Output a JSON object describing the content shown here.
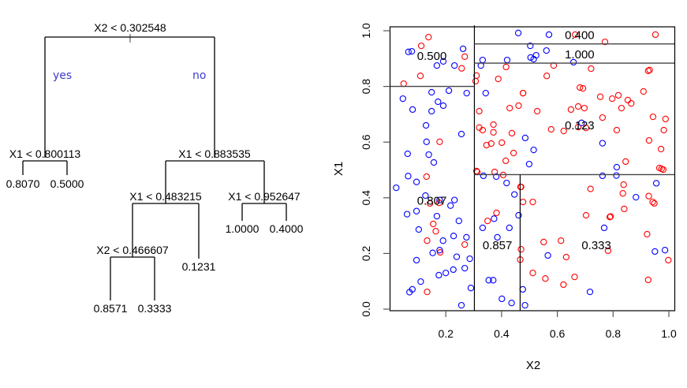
{
  "chart_data": [
    {
      "type": "tree",
      "title": "",
      "root": {
        "split": "X2 < 0.302548",
        "yes_label": "yes",
        "no_label": "no",
        "left": {
          "split": "X1 < 0.800113",
          "left": {
            "leaf": "0.8070"
          },
          "right": {
            "leaf": "0.5000"
          }
        },
        "right": {
          "split": "X1 < 0.883535",
          "left": {
            "split": "X1 < 0.483215",
            "left": {
              "split": "X2 < 0.466607",
              "left": {
                "leaf": "0.8571"
              },
              "right": {
                "leaf": "0.3333"
              }
            },
            "right": {
              "leaf": "0.1231"
            }
          },
          "right": {
            "split": "X1 < 0.952647",
            "left": {
              "leaf": "1.0000"
            },
            "right": {
              "leaf": "0.4000"
            }
          }
        }
      }
    },
    {
      "type": "scatter",
      "title": "",
      "xlabel": "X2",
      "ylabel": "X1",
      "xlim": [
        0,
        1
      ],
      "ylim": [
        0,
        1
      ],
      "xticks": [
        "0.2",
        "0.4",
        "0.6",
        "0.8",
        "1.0"
      ],
      "yticks": [
        "0.0",
        "0.2",
        "0.4",
        "0.6",
        "0.8",
        "1.0"
      ],
      "series_colors": {
        "red": "#ff0000",
        "blue": "#0000ff"
      },
      "partition_lines": [
        {
          "orient": "v",
          "at": 0.302548,
          "from": 0,
          "to": 1
        },
        {
          "orient": "h",
          "at": 0.800113,
          "from": 0,
          "to": 0.302548
        },
        {
          "orient": "h",
          "at": 0.883535,
          "from": 0.302548,
          "to": 1
        },
        {
          "orient": "h",
          "at": 0.952647,
          "from": 0.302548,
          "to": 1
        },
        {
          "orient": "h",
          "at": 0.483215,
          "from": 0.302548,
          "to": 1
        },
        {
          "orient": "v",
          "at": 0.466607,
          "from": 0,
          "to": 0.483215
        }
      ],
      "region_labels": [
        {
          "text": "0.500",
          "x": 0.15,
          "y": 0.91
        },
        {
          "text": "0.400",
          "x": 0.68,
          "y": 0.985
        },
        {
          "text": "1.000",
          "x": 0.68,
          "y": 0.915
        },
        {
          "text": "0.123",
          "x": 0.68,
          "y": 0.66
        },
        {
          "text": "0.807",
          "x": 0.15,
          "y": 0.39
        },
        {
          "text": "0.857",
          "x": 0.385,
          "y": 0.23
        },
        {
          "text": "0.333",
          "x": 0.74,
          "y": 0.23
        }
      ],
      "points_px_note": "x = X2, y = X1",
      "series": [
        {
          "name": "red",
          "points": [
            [
              0.138,
              0.977
            ],
            [
              0.112,
              0.946
            ],
            [
              0.268,
              0.907
            ],
            [
              0.257,
              0.865
            ],
            [
              0.109,
              0.838
            ],
            [
              0.049,
              0.81
            ],
            [
              0.178,
              0.601
            ],
            [
              0.31,
              0.839
            ],
            [
              0.307,
              0.819
            ],
            [
              0.416,
              0.87
            ],
            [
              0.388,
              0.827
            ],
            [
              0.477,
              0.776
            ],
            [
              0.429,
              0.722
            ],
            [
              0.461,
              0.731
            ],
            [
              0.32,
              0.711
            ],
            [
              0.32,
              0.652
            ],
            [
              0.332,
              0.643
            ],
            [
              0.371,
              0.663
            ],
            [
              0.371,
              0.635
            ],
            [
              0.437,
              0.632
            ],
            [
              0.401,
              0.598
            ],
            [
              0.363,
              0.595
            ],
            [
              0.346,
              0.589
            ],
            [
              0.443,
              0.561
            ],
            [
              0.415,
              0.533
            ],
            [
              0.664,
              0.986
            ],
            [
              0.771,
              0.96
            ],
            [
              0.952,
              0.986
            ],
            [
              0.587,
              0.875
            ],
            [
              0.721,
              0.864
            ],
            [
              0.562,
              0.838
            ],
            [
              0.926,
              0.856
            ],
            [
              0.931,
              0.859
            ],
            [
              0.681,
              0.796
            ],
            [
              0.692,
              0.793
            ],
            [
              0.477,
              0.776
            ],
            [
              0.754,
              0.763
            ],
            [
              0.797,
              0.756
            ],
            [
              0.819,
              0.768
            ],
            [
              0.853,
              0.751
            ],
            [
              0.865,
              0.739
            ],
            [
              0.909,
              0.782
            ],
            [
              0.83,
              0.722
            ],
            [
              0.528,
              0.711
            ],
            [
              0.649,
              0.717
            ],
            [
              0.675,
              0.728
            ],
            [
              0.697,
              0.722
            ],
            [
              0.762,
              0.688
            ],
            [
              0.943,
              0.691
            ],
            [
              0.988,
              0.683
            ],
            [
              0.578,
              0.646
            ],
            [
              0.623,
              0.64
            ],
            [
              0.675,
              0.654
            ],
            [
              0.703,
              0.651
            ],
            [
              0.813,
              0.643
            ],
            [
              0.982,
              0.643
            ],
            [
              0.929,
              0.606
            ],
            [
              0.972,
              0.575
            ],
            [
              0.845,
              0.53
            ],
            [
              0.966,
              0.507
            ],
            [
              0.974,
              0.504
            ],
            [
              0.98,
              0.501
            ],
            [
              0.31,
              0.496
            ],
            [
              0.313,
              0.493
            ],
            [
              0.375,
              0.493
            ],
            [
              0.406,
              0.482
            ],
            [
              0.131,
              0.476
            ],
            [
              0.468,
              0.439
            ],
            [
              0.143,
              0.38
            ],
            [
              0.176,
              0.382
            ],
            [
              0.382,
              0.346
            ],
            [
              0.35,
              0.317
            ],
            [
              0.477,
              0.385
            ],
            [
              0.155,
              0.306
            ],
            [
              0.164,
              0.28
            ],
            [
              0.133,
              0.246
            ],
            [
              0.268,
              0.232
            ],
            [
              0.18,
              0.204
            ],
            [
              0.47,
              0.215
            ],
            [
              0.467,
              0.178
            ],
            [
              0.133,
              0.062
            ],
            [
              0.47,
              0.439
            ],
            [
              0.719,
              0.432
            ],
            [
              0.838,
              0.447
            ],
            [
              0.835,
              0.416
            ],
            [
              0.928,
              0.406
            ],
            [
              0.942,
              0.385
            ],
            [
              0.948,
              0.38
            ],
            [
              0.512,
              0.385
            ],
            [
              0.84,
              0.36
            ],
            [
              0.703,
              0.337
            ],
            [
              0.788,
              0.331
            ],
            [
              0.791,
              0.333
            ],
            [
              0.922,
              0.269
            ],
            [
              0.551,
              0.241
            ],
            [
              0.613,
              0.246
            ],
            [
              0.782,
              0.21
            ],
            [
              0.632,
              0.187
            ],
            [
              0.998,
              0.176
            ],
            [
              0.512,
              0.13
            ],
            [
              0.557,
              0.11
            ],
            [
              0.662,
              0.116
            ],
            [
              0.622,
              0.088
            ],
            [
              0.926,
              0.105
            ]
          ]
        },
        {
          "name": "blue",
          "points": [
            [
              0.066,
              0.924
            ],
            [
              0.078,
              0.926
            ],
            [
              0.262,
              0.935
            ],
            [
              0.168,
              0.875
            ],
            [
              0.191,
              0.89
            ],
            [
              0.231,
              0.875
            ],
            [
              0.149,
              0.779
            ],
            [
              0.211,
              0.785
            ],
            [
              0.275,
              0.776
            ],
            [
              0.046,
              0.756
            ],
            [
              0.172,
              0.745
            ],
            [
              0.191,
              0.731
            ],
            [
              0.081,
              0.717
            ],
            [
              0.149,
              0.711
            ],
            [
              0.129,
              0.66
            ],
            [
              0.256,
              0.629
            ],
            [
              0.131,
              0.601
            ],
            [
              0.063,
              0.558
            ],
            [
              0.139,
              0.555
            ],
            [
              0.157,
              0.527
            ],
            [
              0.46,
              0.992
            ],
            [
              0.332,
              0.895
            ],
            [
              0.326,
              0.875
            ],
            [
              0.42,
              0.895
            ],
            [
              0.57,
              0.986
            ],
            [
              0.503,
              0.946
            ],
            [
              0.561,
              0.929
            ],
            [
              0.504,
              0.904
            ],
            [
              0.515,
              0.898
            ],
            [
              0.524,
              0.912
            ],
            [
              0.658,
              0.887
            ],
            [
              0.343,
              0.776
            ],
            [
              0.687,
              0.669
            ],
            [
              0.485,
              0.615
            ],
            [
              0.515,
              0.572
            ],
            [
              0.499,
              0.521
            ],
            [
              0.762,
              0.596
            ],
            [
              0.813,
              0.51
            ],
            [
              0.812,
              0.48
            ],
            [
              0.762,
              0.479
            ],
            [
              0.955,
              0.452
            ],
            [
              0.882,
              0.402
            ],
            [
              0.022,
              0.436
            ],
            [
              0.065,
              0.478
            ],
            [
              0.095,
              0.457
            ],
            [
              0.127,
              0.408
            ],
            [
              0.178,
              0.392
            ],
            [
              0.231,
              0.392
            ],
            [
              0.217,
              0.372
            ],
            [
              0.061,
              0.341
            ],
            [
              0.095,
              0.352
            ],
            [
              0.168,
              0.334
            ],
            [
              0.247,
              0.317
            ],
            [
              0.335,
              0.479
            ],
            [
              0.381,
              0.476
            ],
            [
              0.418,
              0.453
            ],
            [
              0.446,
              0.412
            ],
            [
              0.332,
              0.292
            ],
            [
              0.373,
              0.325
            ],
            [
              0.385,
              0.258
            ],
            [
              0.428,
              0.292
            ],
            [
              0.461,
              0.337
            ],
            [
              0.103,
              0.286
            ],
            [
              0.228,
              0.263
            ],
            [
              0.19,
              0.246
            ],
            [
              0.274,
              0.258
            ],
            [
              0.095,
              0.176
            ],
            [
              0.153,
              0.202
            ],
            [
              0.178,
              0.212
            ],
            [
              0.239,
              0.188
            ],
            [
              0.286,
              0.181
            ],
            [
              0.227,
              0.142
            ],
            [
              0.268,
              0.147
            ],
            [
              0.11,
              0.099
            ],
            [
              0.175,
              0.122
            ],
            [
              0.2,
              0.13
            ],
            [
              0.07,
              0.061
            ],
            [
              0.08,
              0.071
            ],
            [
              0.29,
              0.076
            ],
            [
              0.354,
              0.104
            ],
            [
              0.37,
              0.104
            ],
            [
              0.401,
              0.037
            ],
            [
              0.436,
              0.022
            ],
            [
              0.256,
              0.014
            ],
            [
              0.484,
              0.014
            ],
            [
              0.476,
              0.071
            ],
            [
              0.566,
              0.193
            ],
            [
              0.768,
              0.292
            ],
            [
              0.95,
              0.207
            ],
            [
              0.986,
              0.212
            ],
            [
              0.717,
              0.062
            ]
          ]
        }
      ]
    }
  ]
}
